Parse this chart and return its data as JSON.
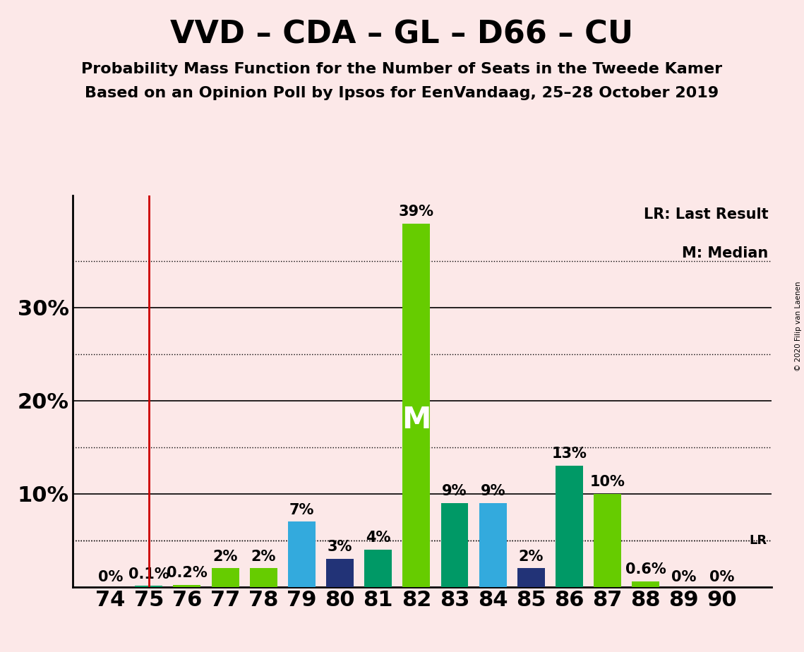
{
  "title": "VVD – CDA – GL – D66 – CU",
  "subtitle1": "Probability Mass Function for the Number of Seats in the Tweede Kamer",
  "subtitle2": "Based on an Opinion Poll by Ipsos for EenVandaag, 25–28 October 2019",
  "background_color": "#fce8e8",
  "seats": [
    74,
    75,
    76,
    77,
    78,
    79,
    80,
    81,
    82,
    83,
    84,
    85,
    86,
    87,
    88,
    89,
    90
  ],
  "values": [
    0.0,
    0.1,
    0.2,
    2.0,
    2.0,
    7.0,
    3.0,
    4.0,
    39.0,
    9.0,
    9.0,
    2.0,
    13.0,
    10.0,
    0.6,
    0.0,
    0.0
  ],
  "bar_colors": [
    "#66cc00",
    "#009966",
    "#66cc00",
    "#66cc00",
    "#66cc00",
    "#33aadd",
    "#223377",
    "#009966",
    "#66cc00",
    "#009966",
    "#33aadd",
    "#223377",
    "#009966",
    "#66cc00",
    "#66cc00",
    "#66cc00",
    "#66cc00"
  ],
  "value_labels": [
    "0%",
    "0.1%",
    "0.2%",
    "2%",
    "2%",
    "7%",
    "3%",
    "4%",
    "39%",
    "9%",
    "9%",
    "2%",
    "13%",
    "10%",
    "0.6%",
    "0%",
    "0%"
  ],
  "median_seat": 82,
  "lr_seat": 75,
  "lr_value": 5.0,
  "ylim": [
    0,
    42
  ],
  "major_yticks": [
    10,
    20,
    30
  ],
  "dotted_yticks": [
    5,
    15,
    25,
    35
  ],
  "copyright_text": "© 2020 Filip van Laenen",
  "lr_label": "LR: Last Result",
  "m_label": "M: Median",
  "m_text_in_bar": "M",
  "title_fontsize": 32,
  "subtitle_fontsize": 16,
  "axis_label_fontsize": 22,
  "bar_label_fontsize": 15
}
